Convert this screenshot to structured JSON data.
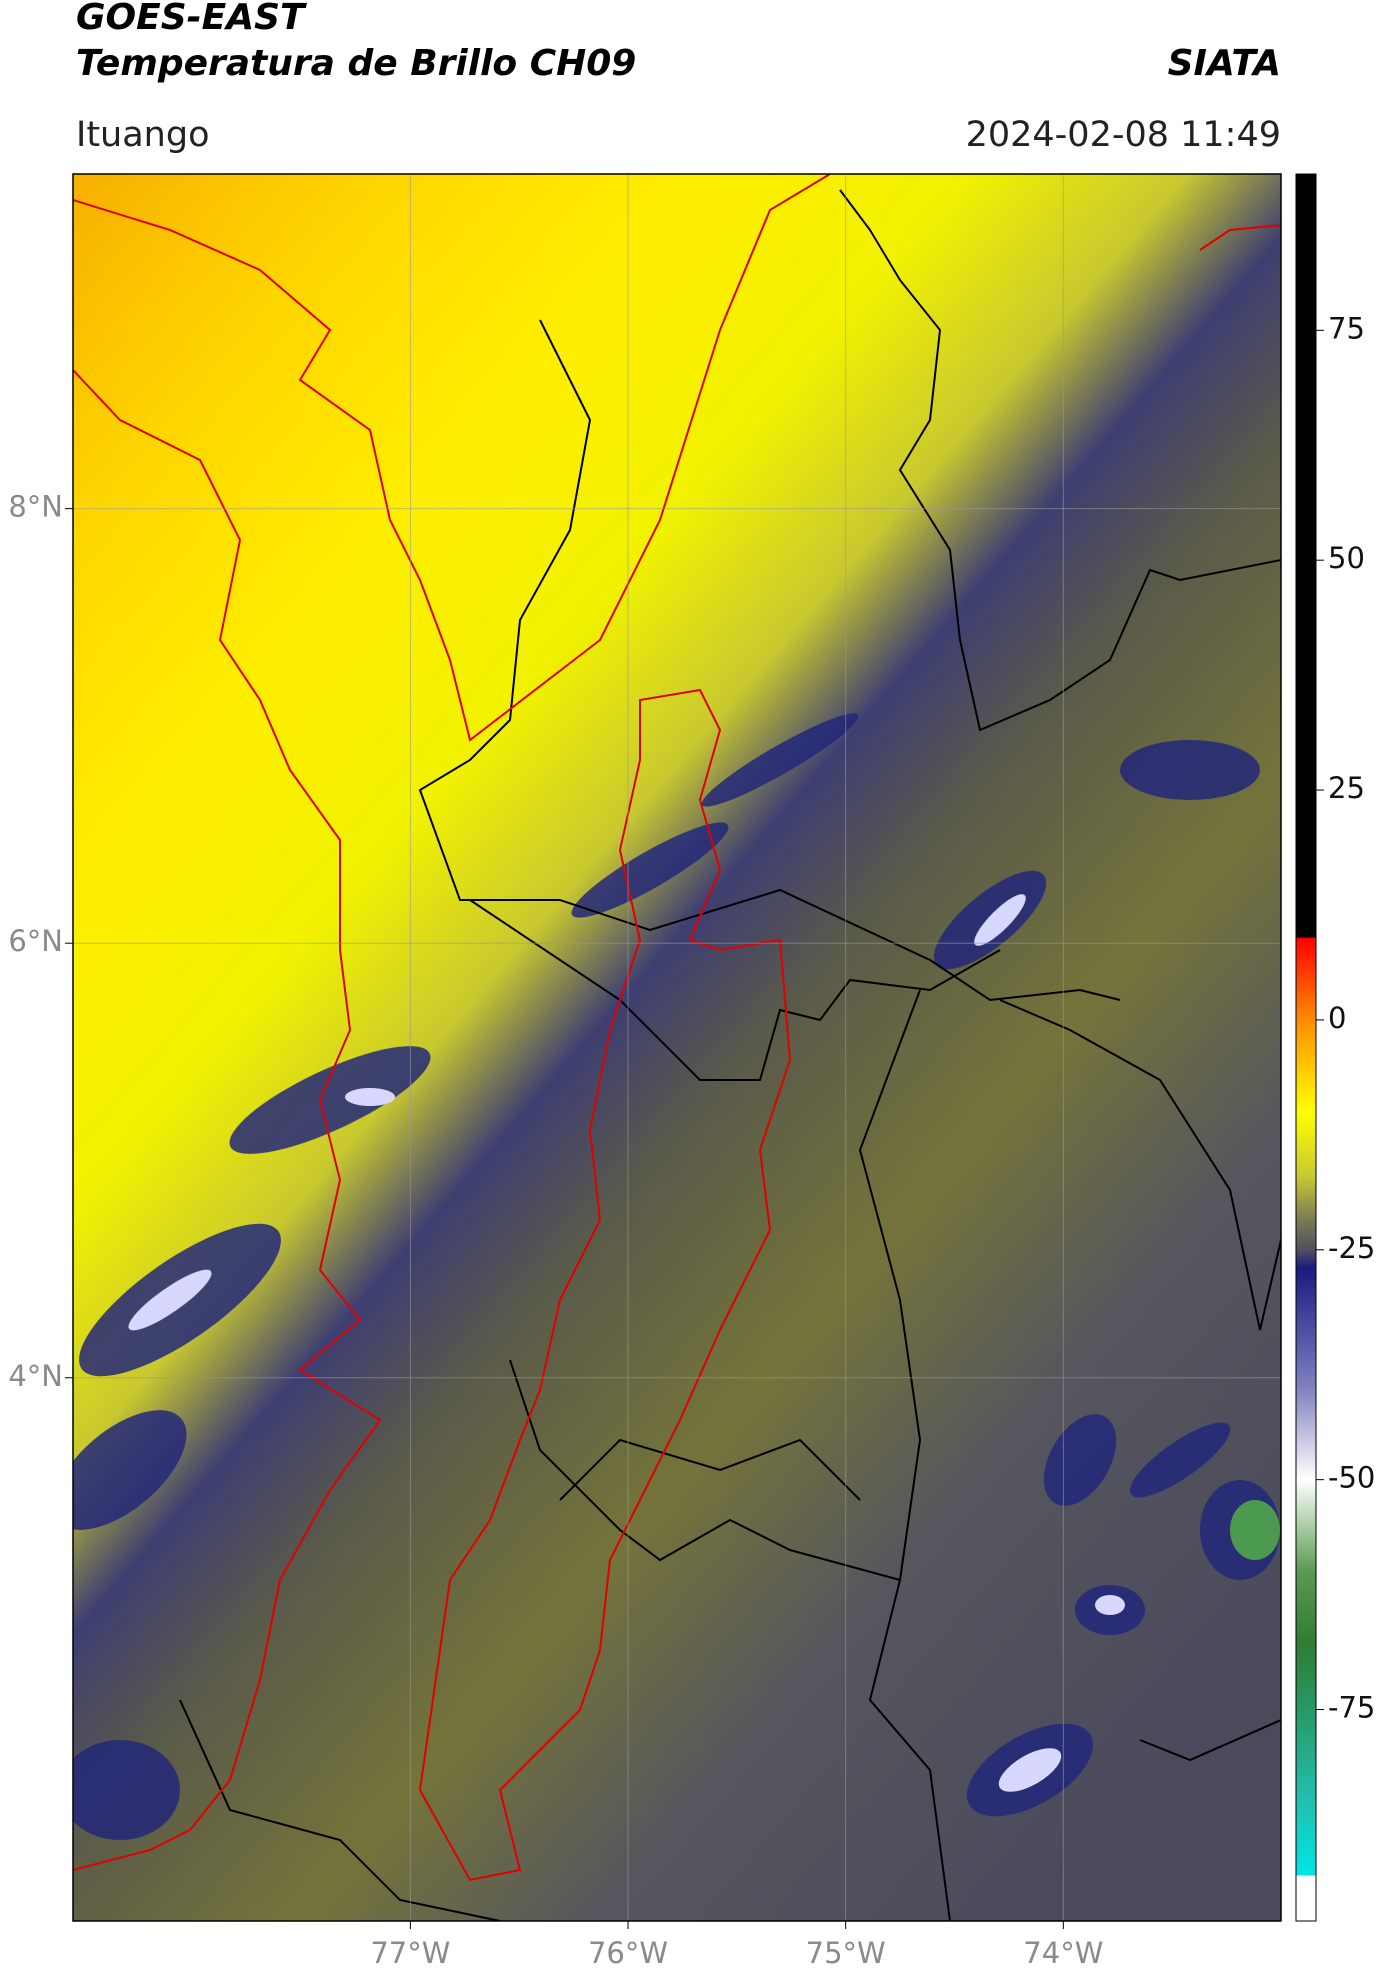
{
  "header": {
    "title": "GOES-EAST",
    "subtitle": "Temperatura de Brillo CH09",
    "brand": "SIATA",
    "location": "Ituango",
    "datetime": "2024-02-08 11:49"
  },
  "chart_data": {
    "type": "map",
    "xlim": [
      -78.55,
      -73.0
    ],
    "ylim": [
      1.5,
      9.54
    ],
    "xticks": [
      {
        "value": -77,
        "label": "77°W"
      },
      {
        "value": -76,
        "label": "76°W"
      },
      {
        "value": -75,
        "label": "75°W"
      },
      {
        "value": -74,
        "label": "74°W"
      }
    ],
    "yticks": [
      {
        "value": 4,
        "label": "4°N"
      },
      {
        "value": 6,
        "label": "6°N"
      },
      {
        "value": 8,
        "label": "8°N"
      }
    ],
    "grid": true,
    "colorbar": {
      "lim": [
        -98,
        92
      ],
      "ticks": [
        -75,
        -50,
        -25,
        0,
        25,
        50,
        75
      ],
      "colormap": [
        {
          "value": 92,
          "color": "#000000"
        },
        {
          "value": 9,
          "color": "#000000"
        },
        {
          "value": 8.9,
          "color": "#ff0000"
        },
        {
          "value": 0,
          "color": "#ff8c00"
        },
        {
          "value": -10,
          "color": "#ffff00"
        },
        {
          "value": -17,
          "color": "#c8c832"
        },
        {
          "value": -22,
          "color": "#777755"
        },
        {
          "value": -25,
          "color": "#505060"
        },
        {
          "value": -27,
          "color": "#1a1a80"
        },
        {
          "value": -40,
          "color": "#8080c0"
        },
        {
          "value": -50,
          "color": "#ffffff"
        },
        {
          "value": -60,
          "color": "#5a9a50"
        },
        {
          "value": -68,
          "color": "#2e7d32"
        },
        {
          "value": -85,
          "color": "#20c0b0"
        },
        {
          "value": -93,
          "color": "#00e5e5"
        },
        {
          "value": -93.1,
          "color": "#ffffff"
        },
        {
          "value": -98,
          "color": "#ffffff"
        }
      ]
    }
  }
}
